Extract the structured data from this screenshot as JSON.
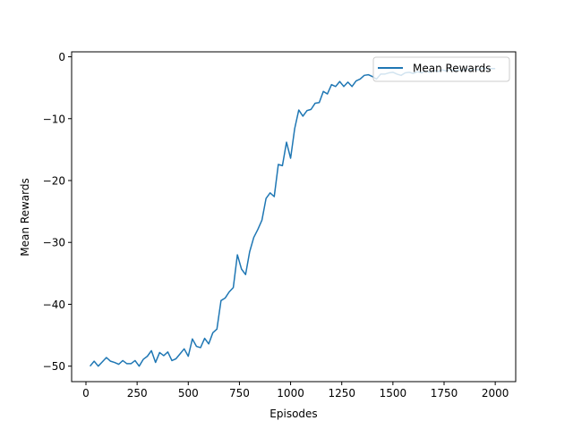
{
  "chart_data": {
    "type": "line",
    "title": "",
    "xlabel": "Episodes",
    "ylabel": "Mean Rewards",
    "xlim": [
      -70,
      2100
    ],
    "ylim": [
      -52.5,
      0.8
    ],
    "xticks": [
      0,
      250,
      500,
      750,
      1000,
      1250,
      1500,
      1750,
      2000
    ],
    "yticks": [
      0,
      -10,
      -20,
      -30,
      -40,
      -50
    ],
    "xtick_labels": [
      "0",
      "250",
      "500",
      "750",
      "1000",
      "1250",
      "1500",
      "1750",
      "2000"
    ],
    "ytick_labels": [
      "0",
      "−10",
      "−20",
      "−30",
      "−40",
      "−50"
    ],
    "grid": false,
    "legend_position": "top-right",
    "colors": {
      "series": "#1f77b4",
      "frame": "#000000",
      "legend_border": "#cccccc"
    },
    "series": [
      {
        "name": "Mean Rewards",
        "x": [
          20,
          40,
          60,
          80,
          100,
          120,
          140,
          160,
          180,
          200,
          220,
          240,
          260,
          280,
          300,
          320,
          340,
          360,
          380,
          400,
          420,
          440,
          460,
          480,
          500,
          520,
          540,
          560,
          580,
          600,
          620,
          640,
          660,
          680,
          700,
          720,
          740,
          760,
          780,
          800,
          820,
          840,
          860,
          880,
          900,
          920,
          940,
          960,
          980,
          1000,
          1020,
          1040,
          1060,
          1080,
          1100,
          1120,
          1140,
          1160,
          1180,
          1200,
          1220,
          1240,
          1260,
          1280,
          1300,
          1320,
          1340,
          1360,
          1380,
          1400,
          1420,
          1440,
          1460,
          1480,
          1500,
          1520,
          1540,
          1560,
          1580,
          1600,
          1620,
          1640,
          1660,
          1680,
          1700,
          1720,
          1740,
          1760,
          1780,
          1800,
          1820,
          1840,
          1860,
          1880,
          1900,
          1920,
          1940,
          1960,
          1980,
          2000
        ],
        "y": [
          -50.0,
          -49.2,
          -50.0,
          -49.3,
          -48.6,
          -49.2,
          -49.4,
          -49.7,
          -49.1,
          -49.6,
          -49.6,
          -49.1,
          -50.0,
          -48.9,
          -48.4,
          -47.5,
          -49.4,
          -47.8,
          -48.3,
          -47.7,
          -49.1,
          -48.8,
          -48.0,
          -47.2,
          -48.4,
          -45.6,
          -46.8,
          -47.0,
          -45.5,
          -46.4,
          -44.6,
          -44.0,
          -39.4,
          -39.0,
          -38.0,
          -37.3,
          -32.0,
          -34.3,
          -35.2,
          -31.5,
          -29.2,
          -27.9,
          -26.4,
          -22.9,
          -22.0,
          -22.6,
          -17.4,
          -17.6,
          -13.8,
          -16.4,
          -11.6,
          -8.6,
          -9.6,
          -8.7,
          -8.5,
          -7.5,
          -7.4,
          -5.6,
          -6.0,
          -4.5,
          -4.8,
          -4.0,
          -4.8,
          -4.1,
          -4.8,
          -3.9,
          -3.6,
          -3.0,
          -2.9,
          -3.2,
          -3.6,
          -2.8,
          -2.8,
          -2.6,
          -2.5,
          -2.8,
          -3.0,
          -2.6,
          -2.5,
          -2.7,
          -2.4,
          -2.6,
          -2.3,
          -2.5,
          -2.2,
          -2.4,
          -2.1,
          -2.3,
          -2.0,
          -2.3,
          -2.1,
          -2.2,
          -1.9,
          -2.2,
          -2.0,
          -2.1,
          -1.8,
          -2.0,
          -1.9,
          -1.9
        ]
      }
    ]
  }
}
